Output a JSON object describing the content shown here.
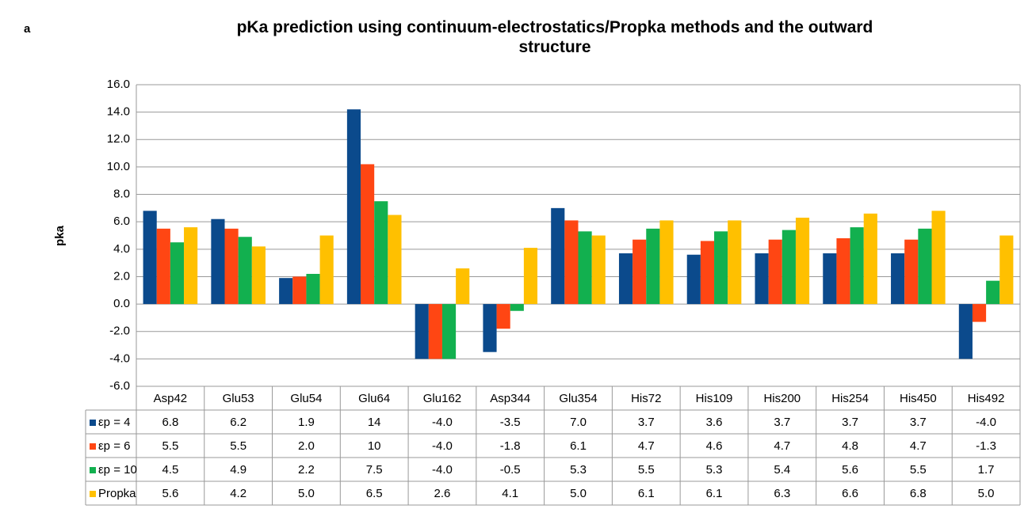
{
  "panel_label": "a",
  "chart_data": {
    "type": "bar",
    "title": "pKa prediction using continuum-electrostatics/Propka methods and the outward structure",
    "y_label": "pka",
    "categories": [
      "Asp42",
      "Glu53",
      "Glu54",
      "Glu64",
      "Glu162",
      "Asp344",
      "Glu354",
      "His72",
      "His109",
      "His200",
      "His254",
      "His450",
      "His492"
    ],
    "series": [
      {
        "name": "εp = 4",
        "color": "#0b4a8c",
        "values": [
          6.8,
          6.2,
          1.9,
          14.2,
          -4.0,
          -3.5,
          7.0,
          3.7,
          3.6,
          3.7,
          3.7,
          3.7,
          -4.0
        ],
        "value_labels": [
          "6.8",
          "6.2",
          "1.9",
          "14",
          "-4.0",
          "-3.5",
          "7.0",
          "3.7",
          "3.6",
          "3.7",
          "3.7",
          "3.7",
          "-4.0"
        ]
      },
      {
        "name": "εp = 6",
        "color": "#ff4613",
        "values": [
          5.5,
          5.5,
          2.0,
          10.2,
          -4.0,
          -1.8,
          6.1,
          4.7,
          4.6,
          4.7,
          4.8,
          4.7,
          -1.3
        ],
        "value_labels": [
          "5.5",
          "5.5",
          "2.0",
          "10",
          "-4.0",
          "-1.8",
          "6.1",
          "4.7",
          "4.6",
          "4.7",
          "4.8",
          "4.7",
          "-1.3"
        ]
      },
      {
        "name": "εp = 10",
        "color": "#12b04f",
        "values": [
          4.5,
          4.9,
          2.2,
          7.5,
          -4.0,
          -0.5,
          5.3,
          5.5,
          5.3,
          5.4,
          5.6,
          5.5,
          1.7
        ],
        "value_labels": [
          "4.5",
          "4.9",
          "2.2",
          "7.5",
          "-4.0",
          "-0.5",
          "5.3",
          "5.5",
          "5.3",
          "5.4",
          "5.6",
          "5.5",
          "1.7"
        ]
      },
      {
        "name": "Propka",
        "color": "#ffc000",
        "values": [
          5.6,
          4.2,
          5.0,
          6.5,
          2.6,
          4.1,
          5.0,
          6.1,
          6.1,
          6.3,
          6.6,
          6.8,
          5.0
        ],
        "value_labels": [
          "5.6",
          "4.2",
          "5.0",
          "6.5",
          "2.6",
          "4.1",
          "5.0",
          "6.1",
          "6.1",
          "6.3",
          "6.6",
          "6.8",
          "5.0"
        ]
      }
    ],
    "ylim": [
      -6,
      16
    ],
    "yticks": [
      {
        "value": -6,
        "label": "-6.0"
      },
      {
        "value": -4,
        "label": "-4.0"
      },
      {
        "value": -2,
        "label": "-2.0"
      },
      {
        "value": 0,
        "label": "0.0"
      },
      {
        "value": 2,
        "label": "2.0"
      },
      {
        "value": 4,
        "label": "4.0"
      },
      {
        "value": 6,
        "label": "6.0"
      },
      {
        "value": 8,
        "label": "8.0"
      },
      {
        "value": 10,
        "label": "10.0"
      },
      {
        "value": 12,
        "label": "12.0"
      },
      {
        "value": 14,
        "label": "14.0"
      },
      {
        "value": 16,
        "label": "16.0"
      }
    ],
    "grid": true
  }
}
